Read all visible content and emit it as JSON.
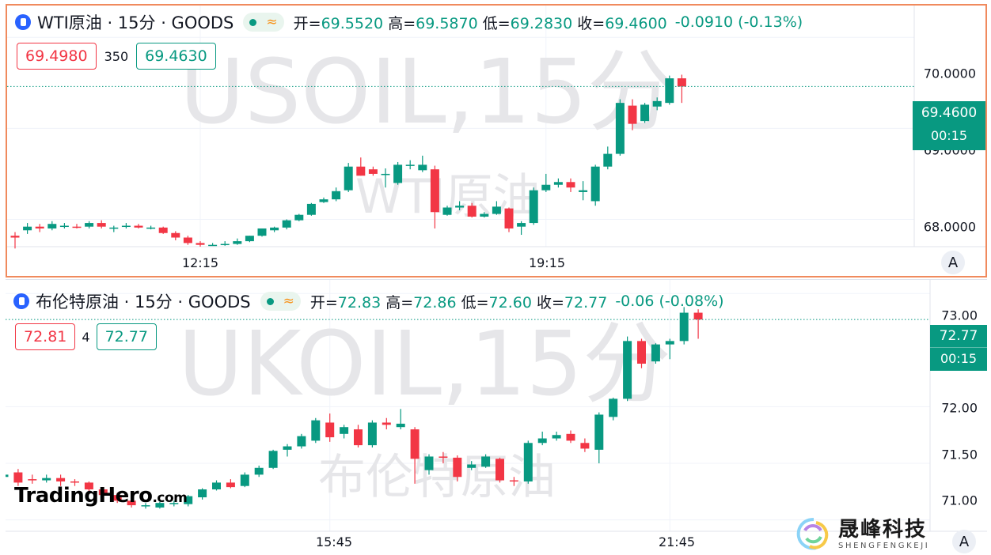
{
  "panes": [
    {
      "id": "wti",
      "symbol_title": "WTI原油 · 15分 · GOODS",
      "ohlc": [
        {
          "label": "开=",
          "value": "69.5520"
        },
        {
          "label": "高=",
          "value": "69.5870"
        },
        {
          "label": "低=",
          "value": "69.2830"
        },
        {
          "label": "收=",
          "value": "69.4600"
        }
      ],
      "change": "-0.0910 (-0.13%)",
      "sell_price": "69.4980",
      "spread": "350",
      "buy_price": "69.4630",
      "watermark_big": "USOIL,15分",
      "watermark_small": "WTI原油",
      "y_ticks": [
        "70.0000",
        "69.0000",
        "68.0000"
      ],
      "x_ticks": [
        "12:15",
        "19:15"
      ],
      "last_price": "69.4600",
      "countdown": "00:15",
      "auto_button": "A"
    },
    {
      "id": "brent",
      "symbol_title": "布伦特原油 · 15分 · GOODS",
      "ohlc": [
        {
          "label": "开=",
          "value": "72.83"
        },
        {
          "label": "高=",
          "value": "72.86"
        },
        {
          "label": "低=",
          "value": "72.60"
        },
        {
          "label": "收=",
          "value": "72.77"
        }
      ],
      "change": "-0.06 (-0.08%)",
      "sell_price": "72.81",
      "spread": "4",
      "buy_price": "72.77",
      "watermark_big": "UKOIL,15分",
      "watermark_small": "布伦特原油",
      "y_ticks": [
        "73.00",
        "72.00",
        "71.50",
        "71.00"
      ],
      "x_ticks": [
        "15:45",
        "21:45"
      ],
      "last_price": "72.77",
      "countdown": "00:15",
      "auto_button": "A"
    }
  ],
  "logo": {
    "main": "TradingHero",
    "suffix": ".com"
  },
  "brand": {
    "cn": "晟峰科技",
    "en": "SHENGFENGKEJI"
  },
  "colors": {
    "up": "#089981",
    "down": "#f23645",
    "grid": "#f0f3fa",
    "watermark": "#e6e6e9"
  },
  "chart_data": [
    {
      "type": "candlestick",
      "title": "WTI原油 · 15分 · GOODS",
      "y_range": [
        67.7,
        70.35
      ],
      "y_ticks": [
        70.0,
        69.0,
        68.0
      ],
      "x_ticks": [
        {
          "label": "12:15",
          "index": 15
        },
        {
          "label": "19:15",
          "index": 43
        }
      ],
      "last_price": 69.46,
      "candles": [
        {
          "o": 67.82,
          "h": 67.86,
          "l": 67.68,
          "c": 67.8
        },
        {
          "o": 67.88,
          "h": 67.96,
          "l": 67.84,
          "c": 67.92
        },
        {
          "o": 67.92,
          "h": 67.95,
          "l": 67.86,
          "c": 67.9
        },
        {
          "o": 67.9,
          "h": 67.98,
          "l": 67.88,
          "c": 67.95
        },
        {
          "o": 67.93,
          "h": 67.96,
          "l": 67.9,
          "c": 67.93
        },
        {
          "o": 67.92,
          "h": 67.95,
          "l": 67.9,
          "c": 67.91
        },
        {
          "o": 67.92,
          "h": 67.98,
          "l": 67.9,
          "c": 67.96
        },
        {
          "o": 67.96,
          "h": 67.99,
          "l": 67.9,
          "c": 67.92
        },
        {
          "o": 67.9,
          "h": 67.93,
          "l": 67.86,
          "c": 67.91
        },
        {
          "o": 67.92,
          "h": 67.96,
          "l": 67.9,
          "c": 67.93
        },
        {
          "o": 67.93,
          "h": 67.95,
          "l": 67.9,
          "c": 67.91
        },
        {
          "o": 67.91,
          "h": 67.93,
          "l": 67.89,
          "c": 67.91
        },
        {
          "o": 67.91,
          "h": 67.92,
          "l": 67.84,
          "c": 67.85
        },
        {
          "o": 67.85,
          "h": 67.87,
          "l": 67.77,
          "c": 67.8
        },
        {
          "o": 67.8,
          "h": 67.82,
          "l": 67.72,
          "c": 67.74
        },
        {
          "o": 67.74,
          "h": 67.76,
          "l": 67.7,
          "c": 67.72
        },
        {
          "o": 67.72,
          "h": 67.74,
          "l": 67.71,
          "c": 67.72
        },
        {
          "o": 67.72,
          "h": 67.76,
          "l": 67.71,
          "c": 67.73
        },
        {
          "o": 67.73,
          "h": 67.79,
          "l": 67.72,
          "c": 67.76
        },
        {
          "o": 67.76,
          "h": 67.82,
          "l": 67.75,
          "c": 67.82
        },
        {
          "o": 67.82,
          "h": 67.9,
          "l": 67.81,
          "c": 67.9
        },
        {
          "o": 67.88,
          "h": 67.92,
          "l": 67.86,
          "c": 67.91
        },
        {
          "o": 67.91,
          "h": 68.0,
          "l": 67.89,
          "c": 67.99
        },
        {
          "o": 67.99,
          "h": 68.06,
          "l": 67.98,
          "c": 68.05
        },
        {
          "o": 68.05,
          "h": 68.18,
          "l": 68.04,
          "c": 68.17
        },
        {
          "o": 68.19,
          "h": 68.24,
          "l": 68.18,
          "c": 68.22
        },
        {
          "o": 68.22,
          "h": 68.35,
          "l": 68.2,
          "c": 68.31
        },
        {
          "o": 68.32,
          "h": 68.62,
          "l": 68.3,
          "c": 68.58
        },
        {
          "o": 68.58,
          "h": 68.68,
          "l": 68.48,
          "c": 68.48
        },
        {
          "o": 68.55,
          "h": 68.58,
          "l": 68.48,
          "c": 68.5
        },
        {
          "o": 68.5,
          "h": 68.56,
          "l": 68.35,
          "c": 68.5
        },
        {
          "o": 68.4,
          "h": 68.63,
          "l": 68.38,
          "c": 68.6
        },
        {
          "o": 68.6,
          "h": 68.65,
          "l": 68.55,
          "c": 68.6
        },
        {
          "o": 68.54,
          "h": 68.7,
          "l": 68.52,
          "c": 68.6
        },
        {
          "o": 68.55,
          "h": 68.59,
          "l": 67.9,
          "c": 68.08
        },
        {
          "o": 68.05,
          "h": 68.15,
          "l": 68.04,
          "c": 68.13
        },
        {
          "o": 68.13,
          "h": 68.2,
          "l": 68.1,
          "c": 68.15
        },
        {
          "o": 68.15,
          "h": 68.18,
          "l": 68.02,
          "c": 68.03
        },
        {
          "o": 68.03,
          "h": 68.08,
          "l": 68.02,
          "c": 68.06
        },
        {
          "o": 68.06,
          "h": 68.2,
          "l": 68.05,
          "c": 68.14
        },
        {
          "o": 68.12,
          "h": 68.13,
          "l": 67.86,
          "c": 67.9
        },
        {
          "o": 67.92,
          "h": 67.98,
          "l": 67.83,
          "c": 67.96
        },
        {
          "o": 67.96,
          "h": 68.35,
          "l": 67.94,
          "c": 68.32
        },
        {
          "o": 68.32,
          "h": 68.5,
          "l": 68.3,
          "c": 68.38
        },
        {
          "o": 68.38,
          "h": 68.45,
          "l": 68.35,
          "c": 68.41
        },
        {
          "o": 68.41,
          "h": 68.45,
          "l": 68.3,
          "c": 68.35
        },
        {
          "o": 68.3,
          "h": 68.42,
          "l": 68.21,
          "c": 68.32
        },
        {
          "o": 68.2,
          "h": 68.6,
          "l": 68.15,
          "c": 68.58
        },
        {
          "o": 68.58,
          "h": 68.8,
          "l": 68.55,
          "c": 68.72
        },
        {
          "o": 68.72,
          "h": 69.32,
          "l": 68.7,
          "c": 69.28
        },
        {
          "o": 69.25,
          "h": 69.32,
          "l": 68.98,
          "c": 69.05
        },
        {
          "o": 69.08,
          "h": 69.28,
          "l": 69.06,
          "c": 69.26
        },
        {
          "o": 69.24,
          "h": 69.34,
          "l": 69.2,
          "c": 69.3
        },
        {
          "o": 69.28,
          "h": 69.58,
          "l": 69.26,
          "c": 69.55
        },
        {
          "o": 69.55,
          "h": 69.59,
          "l": 69.28,
          "c": 69.46
        }
      ]
    },
    {
      "type": "candlestick",
      "title": "布伦特原油 · 15分 · GOODS",
      "y_range": [
        70.9,
        73.12
      ],
      "y_ticks": [
        73.0,
        72.0,
        71.5,
        71.0
      ],
      "x_ticks": [
        {
          "label": "15:45",
          "index": 23
        },
        {
          "label": "21:45",
          "index": 47
        }
      ],
      "last_price": 72.77,
      "candles": [
        {
          "o": 71.38,
          "h": 71.43,
          "l": 71.35,
          "c": 71.4
        },
        {
          "o": 71.42,
          "h": 71.45,
          "l": 71.3,
          "c": 71.33
        },
        {
          "o": 71.36,
          "h": 71.4,
          "l": 71.32,
          "c": 71.35
        },
        {
          "o": 71.35,
          "h": 71.4,
          "l": 71.33,
          "c": 71.37
        },
        {
          "o": 71.37,
          "h": 71.4,
          "l": 71.3,
          "c": 71.34
        },
        {
          "o": 71.34,
          "h": 71.36,
          "l": 71.3,
          "c": 71.33
        },
        {
          "o": 71.33,
          "h": 71.34,
          "l": 71.25,
          "c": 71.27
        },
        {
          "o": 71.27,
          "h": 71.28,
          "l": 71.18,
          "c": 71.22
        },
        {
          "o": 71.22,
          "h": 71.24,
          "l": 71.15,
          "c": 71.17
        },
        {
          "o": 71.17,
          "h": 71.19,
          "l": 71.11,
          "c": 71.13
        },
        {
          "o": 71.13,
          "h": 71.15,
          "l": 71.1,
          "c": 71.13
        },
        {
          "o": 71.11,
          "h": 71.16,
          "l": 71.1,
          "c": 71.15
        },
        {
          "o": 71.14,
          "h": 71.17,
          "l": 71.12,
          "c": 71.15
        },
        {
          "o": 71.14,
          "h": 71.22,
          "l": 71.12,
          "c": 71.21
        },
        {
          "o": 71.2,
          "h": 71.28,
          "l": 71.18,
          "c": 71.27
        },
        {
          "o": 71.27,
          "h": 71.35,
          "l": 71.26,
          "c": 71.33
        },
        {
          "o": 71.33,
          "h": 71.36,
          "l": 71.28,
          "c": 71.29
        },
        {
          "o": 71.3,
          "h": 71.42,
          "l": 71.29,
          "c": 71.4
        },
        {
          "o": 71.4,
          "h": 71.48,
          "l": 71.38,
          "c": 71.46
        },
        {
          "o": 71.46,
          "h": 71.62,
          "l": 71.45,
          "c": 71.61
        },
        {
          "o": 71.62,
          "h": 71.67,
          "l": 71.56,
          "c": 71.65
        },
        {
          "o": 71.65,
          "h": 71.76,
          "l": 71.63,
          "c": 71.74
        },
        {
          "o": 71.7,
          "h": 71.9,
          "l": 71.68,
          "c": 71.88
        },
        {
          "o": 71.86,
          "h": 71.94,
          "l": 71.69,
          "c": 71.73
        },
        {
          "o": 71.76,
          "h": 71.84,
          "l": 71.72,
          "c": 71.82
        },
        {
          "o": 71.8,
          "h": 71.84,
          "l": 71.64,
          "c": 71.66
        },
        {
          "o": 71.66,
          "h": 71.88,
          "l": 71.64,
          "c": 71.86
        },
        {
          "o": 71.86,
          "h": 71.9,
          "l": 71.8,
          "c": 71.84
        },
        {
          "o": 71.82,
          "h": 71.98,
          "l": 71.8,
          "c": 71.85
        },
        {
          "o": 71.8,
          "h": 71.82,
          "l": 71.32,
          "c": 71.54
        },
        {
          "o": 71.44,
          "h": 71.58,
          "l": 71.4,
          "c": 71.56
        },
        {
          "o": 71.56,
          "h": 71.6,
          "l": 71.5,
          "c": 71.55
        },
        {
          "o": 71.55,
          "h": 71.57,
          "l": 71.34,
          "c": 71.38
        },
        {
          "o": 71.46,
          "h": 71.52,
          "l": 71.44,
          "c": 71.49
        },
        {
          "o": 71.47,
          "h": 71.58,
          "l": 71.46,
          "c": 71.56
        },
        {
          "o": 71.54,
          "h": 71.55,
          "l": 71.33,
          "c": 71.35
        },
        {
          "o": 71.35,
          "h": 71.38,
          "l": 71.3,
          "c": 71.34
        },
        {
          "o": 71.34,
          "h": 71.7,
          "l": 71.32,
          "c": 71.68
        },
        {
          "o": 71.68,
          "h": 71.78,
          "l": 71.66,
          "c": 71.72
        },
        {
          "o": 71.72,
          "h": 71.78,
          "l": 71.7,
          "c": 71.75
        },
        {
          "o": 71.76,
          "h": 71.79,
          "l": 71.68,
          "c": 71.7
        },
        {
          "o": 71.68,
          "h": 71.72,
          "l": 71.6,
          "c": 71.63
        },
        {
          "o": 71.62,
          "h": 71.95,
          "l": 71.5,
          "c": 71.93
        },
        {
          "o": 71.91,
          "h": 72.08,
          "l": 71.88,
          "c": 72.07
        },
        {
          "o": 72.07,
          "h": 72.62,
          "l": 72.05,
          "c": 72.58
        },
        {
          "o": 72.58,
          "h": 72.6,
          "l": 72.34,
          "c": 72.38
        },
        {
          "o": 72.4,
          "h": 72.56,
          "l": 72.38,
          "c": 72.55
        },
        {
          "o": 72.55,
          "h": 72.6,
          "l": 72.42,
          "c": 72.58
        },
        {
          "o": 72.58,
          "h": 72.88,
          "l": 72.55,
          "c": 72.83
        },
        {
          "o": 72.83,
          "h": 72.86,
          "l": 72.6,
          "c": 72.77
        }
      ]
    }
  ]
}
